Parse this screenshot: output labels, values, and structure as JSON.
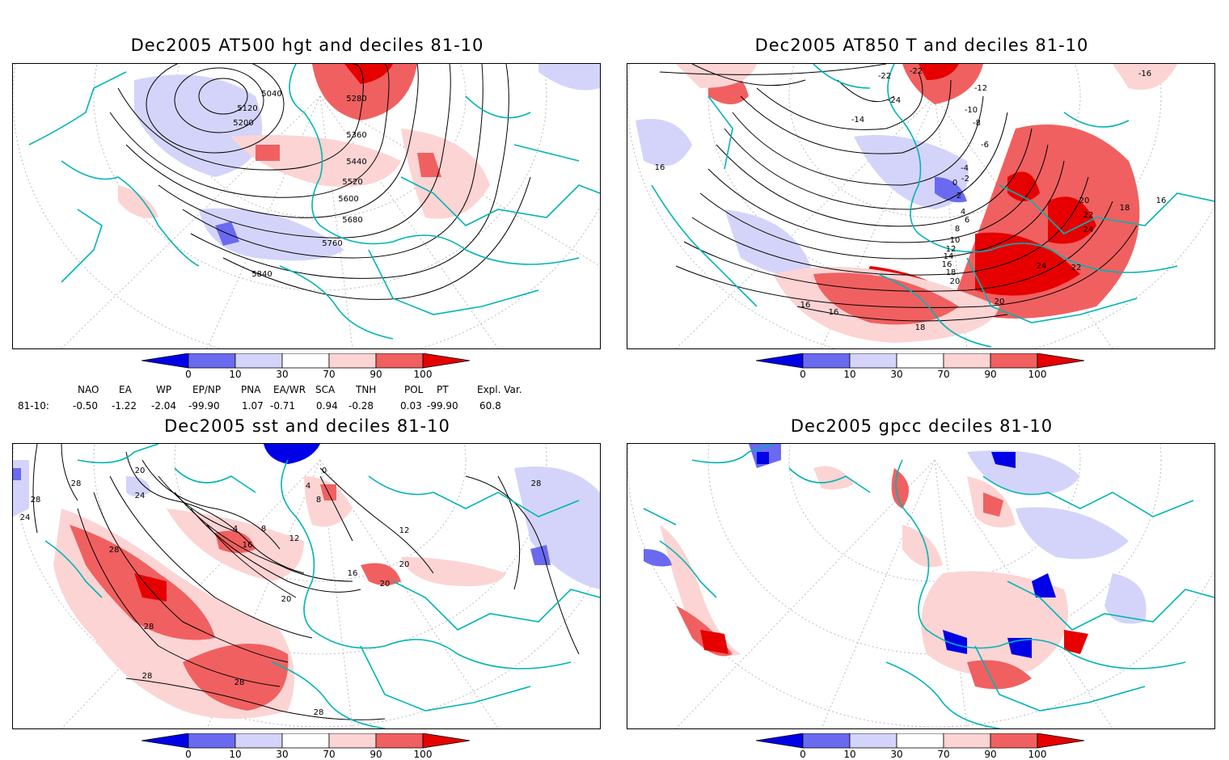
{
  "panels": [
    {
      "id": "p1",
      "title": "Dec2005 AT500 hgt and deciles 81-10",
      "contour_labels": [
        "5040",
        "5120",
        "5200",
        "5280",
        "5360",
        "5440",
        "5520",
        "5600",
        "5680",
        "5760",
        "5840"
      ]
    },
    {
      "id": "p2",
      "title": "Dec2005 AT850 T and deciles 81-10",
      "contour_labels": [
        "-22",
        "-22",
        "-24",
        "-14",
        "-12",
        "-10",
        "-8",
        "-6",
        "-4",
        "-2",
        "0",
        "2",
        "4",
        "6",
        "8",
        "10",
        "12",
        "14",
        "16",
        "18",
        "20",
        "22",
        "24",
        "24",
        "22",
        "20",
        "16",
        "16",
        "16",
        "18",
        "20",
        "18",
        "16",
        "-16"
      ]
    },
    {
      "id": "p3",
      "title": "Dec2005 sst and deciles 81-10",
      "contour_labels": [
        "28",
        "20",
        "28",
        "24",
        "24",
        "28",
        "0",
        "4",
        "8",
        "4",
        "8",
        "12",
        "16",
        "16",
        "20",
        "28",
        "28",
        "28",
        "28",
        "20",
        "12",
        "28",
        "20"
      ]
    },
    {
      "id": "p4",
      "title": "Dec2005 gpcc deciles 81-10",
      "contour_labels": []
    }
  ],
  "colorbar": {
    "labels": [
      "0",
      "10",
      "30",
      "70",
      "90",
      "100"
    ],
    "colors": [
      "#0000e6",
      "#6a6af0",
      "#d4d4fa",
      "#ffffff",
      "#fcd4d4",
      "#f06060",
      "#e60000"
    ]
  },
  "teleconnections": {
    "row_label": "81-10:",
    "headers": [
      "NAO",
      "EA",
      "WP",
      "EP/NP",
      "PNA",
      "EA/WR",
      "SCA",
      "TNH",
      "POL",
      "PT",
      "Expl. Var."
    ],
    "values": [
      "-0.50",
      "-1.22",
      "-2.04",
      "-99.90",
      "1.07",
      "-0.71",
      "0.94",
      "-0.28",
      "0.03",
      "-99.90",
      "60.8"
    ]
  },
  "colors": {
    "coast": "#00b4b4",
    "contour": "#000000"
  }
}
